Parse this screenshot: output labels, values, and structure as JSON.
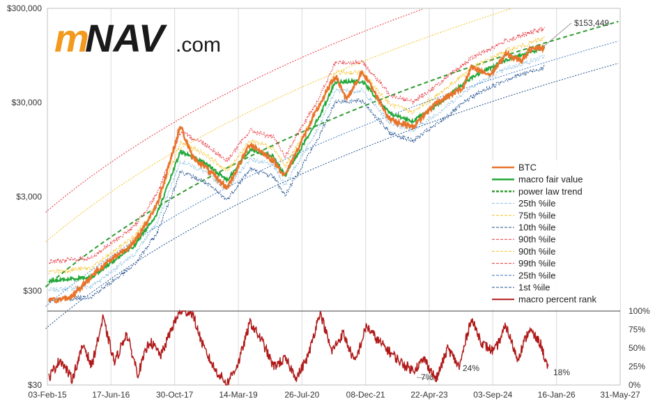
{
  "logo": {
    "part1": "m",
    "part2": "NAV",
    "part3": ".com"
  },
  "colors": {
    "btc": "#E8742C",
    "fair": "#22A83A",
    "trend": "#2E9A2E",
    "red": "#E8323C",
    "yellow": "#F4C020",
    "blue": "#3C78C0",
    "lightblue": "#8EC0E0",
    "darkblue": "#1F4E8C",
    "orange": "#F08020",
    "rank": "#B01818"
  },
  "chart_data": [
    {
      "type": "line",
      "yscale": "log",
      "ylim": [
        30,
        300000
      ],
      "xlim": [
        "2015-02-03",
        "2027-05-31"
      ],
      "x_ticks": [
        "03-Feb-15",
        "17-Jun-16",
        "30-Oct-17",
        "14-Mar-19",
        "26-Jul-20",
        "08-Dec-21",
        "22-Apr-23",
        "03-Sep-24",
        "16-Jan-26",
        "31-May-27"
      ],
      "y_ticks": [
        "$300,000",
        "$30,000",
        "$3,000",
        "$300",
        "$30"
      ],
      "grid": "vertical",
      "legend_position": "right",
      "annotation": "$153,449",
      "series": [
        {
          "name": "BTC",
          "x": [
            "2015-02",
            "2015-08",
            "2016-01",
            "2016-06",
            "2016-12",
            "2017-06",
            "2017-12",
            "2018-03",
            "2018-06",
            "2018-12",
            "2019-06",
            "2019-12",
            "2020-03",
            "2020-06",
            "2020-12",
            "2021-04",
            "2021-07",
            "2021-11",
            "2022-06",
            "2022-12",
            "2023-06",
            "2024-01",
            "2024-03",
            "2024-08",
            "2024-12",
            "2025-04",
            "2025-07",
            "2025-10"
          ],
          "values": [
            230,
            260,
            430,
            650,
            960,
            2500,
            17000,
            8000,
            6400,
            3700,
            11000,
            7200,
            5000,
            9200,
            29000,
            58000,
            32000,
            64000,
            20000,
            16500,
            30000,
            43000,
            70000,
            59000,
            98000,
            84000,
            118000,
            112000
          ]
        },
        {
          "name": "macro fair value",
          "x": [
            "2015-02",
            "2016-01",
            "2016-12",
            "2017-06",
            "2017-12",
            "2018-06",
            "2018-12",
            "2019-06",
            "2019-12",
            "2020-03",
            "2020-12",
            "2021-04",
            "2021-11",
            "2022-06",
            "2022-12",
            "2023-06",
            "2024-03",
            "2024-12",
            "2025-07",
            "2025-10"
          ],
          "values": [
            380,
            420,
            900,
            2000,
            9000,
            7000,
            4500,
            9500,
            8000,
            5000,
            22000,
            50000,
            50000,
            23000,
            19000,
            28000,
            55000,
            85000,
            105000,
            115000
          ]
        },
        {
          "name": "power law trend",
          "dashed": true,
          "a": -17.01,
          "b": 5.84
        },
        {
          "name": "25th %ile",
          "dashed": true,
          "of": "macro fair value",
          "factor": 0.8
        },
        {
          "name": "75th %ile",
          "dashed": true,
          "of": "macro fair value",
          "factor": 1.25
        },
        {
          "name": "10th %ile",
          "dashed": true,
          "of": "macro fair value",
          "factor": 0.62
        },
        {
          "name": "90th %ile",
          "dashed": true,
          "of": "macro fair value",
          "factor": 1.6
        },
        {
          "name": "90th %ile",
          "dashed": true,
          "a": -17.01,
          "b": 5.84,
          "factor": 3.0
        },
        {
          "name": "99th %ile",
          "dashed": true,
          "a": -17.01,
          "b": 5.84,
          "factor": 6.2
        },
        {
          "name": "25th %ile",
          "dashed": true,
          "a": -17.01,
          "b": 5.84,
          "factor": 0.62
        },
        {
          "name": "1st %ile",
          "dashed": true,
          "a": -17.01,
          "b": 5.84,
          "factor": 0.36
        }
      ]
    },
    {
      "type": "line",
      "ylim": [
        0,
        100
      ],
      "y_ticks": [
        "100%",
        "75%",
        "50%",
        "25%",
        "0%"
      ],
      "annotations": [
        "7%",
        "24%",
        "18%"
      ],
      "series": [
        {
          "name": "macro percent rank",
          "x": [
            "2015-02",
            "2015-05",
            "2015-08",
            "2015-11",
            "2016-01",
            "2016-04",
            "2016-07",
            "2016-10",
            "2017-01",
            "2017-04",
            "2017-07",
            "2017-10",
            "2017-12",
            "2018-03",
            "2018-06",
            "2018-09",
            "2018-12",
            "2019-03",
            "2019-06",
            "2019-09",
            "2019-12",
            "2020-03",
            "2020-06",
            "2020-09",
            "2020-12",
            "2021-03",
            "2021-06",
            "2021-09",
            "2021-12",
            "2022-03",
            "2022-06",
            "2022-09",
            "2022-12",
            "2023-03",
            "2023-06",
            "2023-09",
            "2023-12",
            "2024-03",
            "2024-06",
            "2024-09",
            "2024-12",
            "2025-03",
            "2025-06",
            "2025-09",
            "2025-11"
          ],
          "values": [
            10,
            35,
            8,
            55,
            25,
            90,
            30,
            70,
            15,
            60,
            40,
            80,
            100,
            98,
            50,
            20,
            2,
            30,
            85,
            60,
            25,
            35,
            10,
            40,
            100,
            45,
            70,
            30,
            80,
            60,
            45,
            30,
            20,
            35,
            7,
            50,
            24,
            90,
            55,
            45,
            80,
            35,
            75,
            55,
            18
          ]
        }
      ]
    }
  ]
}
